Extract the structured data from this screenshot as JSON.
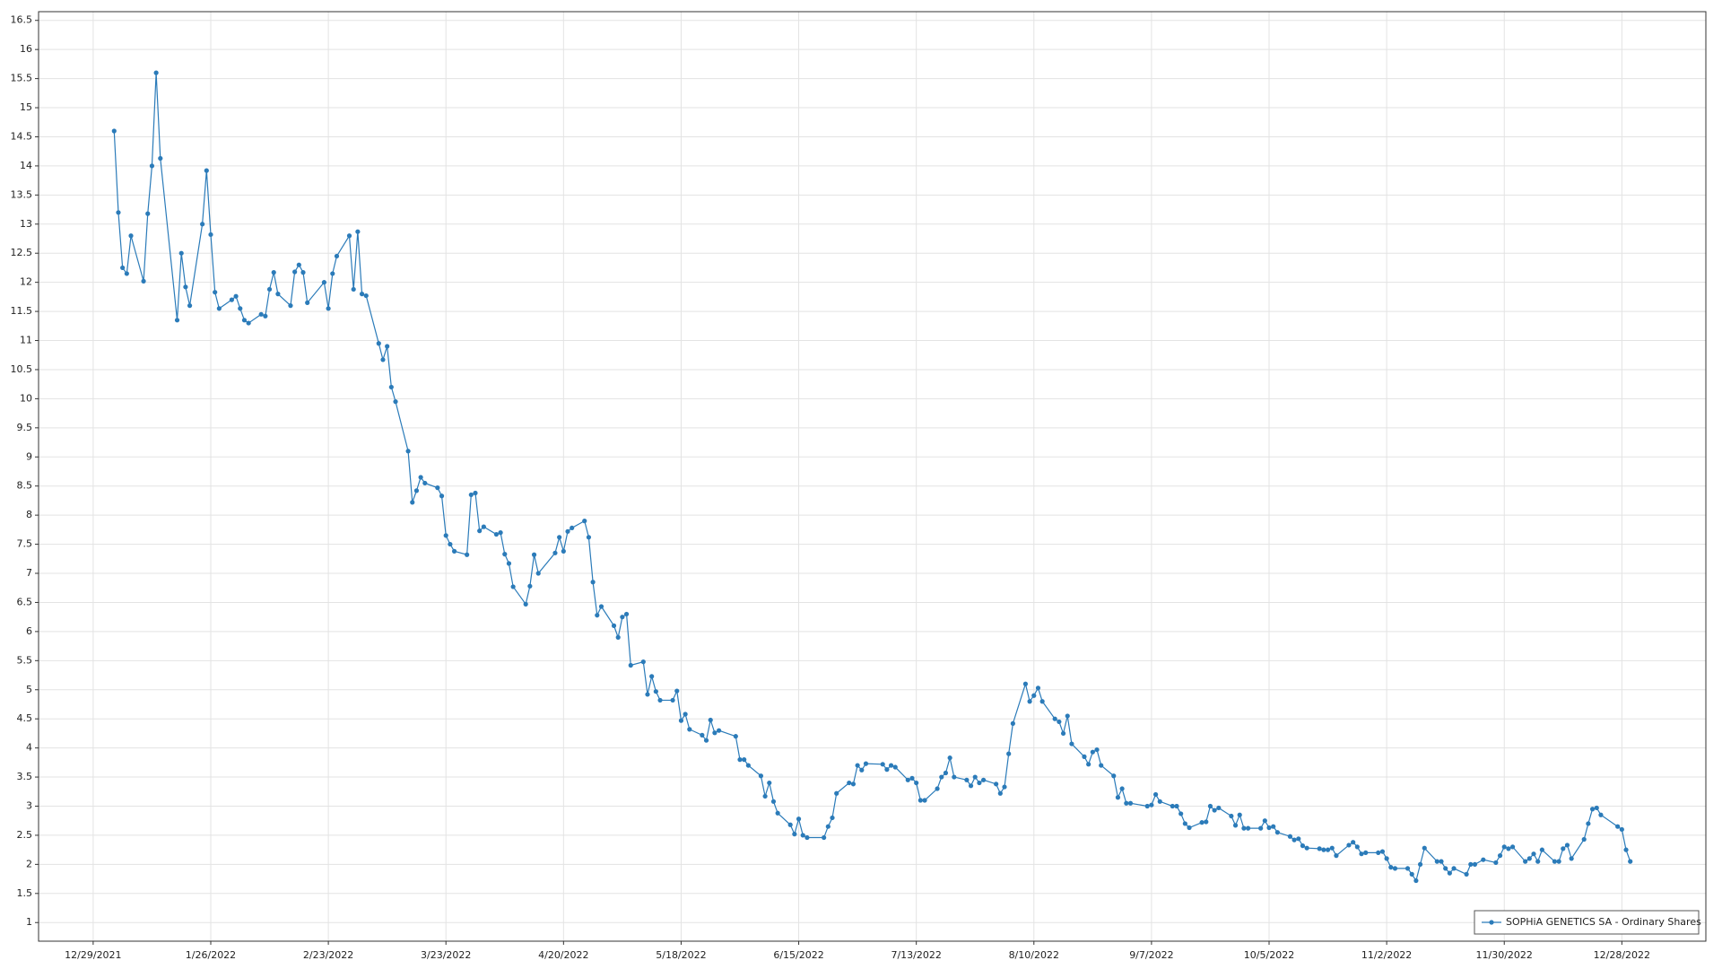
{
  "chart_data": {
    "type": "line",
    "x": [
      "2022-01-03",
      "2022-01-04",
      "2022-01-05",
      "2022-01-06",
      "2022-01-07",
      "2022-01-10",
      "2022-01-11",
      "2022-01-12",
      "2022-01-13",
      "2022-01-14",
      "2022-01-18",
      "2022-01-19",
      "2022-01-20",
      "2022-01-21",
      "2022-01-24",
      "2022-01-25",
      "2022-01-26",
      "2022-01-27",
      "2022-01-28",
      "2022-01-31",
      "2022-02-01",
      "2022-02-02",
      "2022-02-03",
      "2022-02-04",
      "2022-02-07",
      "2022-02-08",
      "2022-02-09",
      "2022-02-10",
      "2022-02-11",
      "2022-02-14",
      "2022-02-15",
      "2022-02-16",
      "2022-02-17",
      "2022-02-18",
      "2022-02-22",
      "2022-02-23",
      "2022-02-24",
      "2022-02-25",
      "2022-02-28",
      "2022-03-01",
      "2022-03-02",
      "2022-03-03",
      "2022-03-04",
      "2022-03-07",
      "2022-03-08",
      "2022-03-09",
      "2022-03-10",
      "2022-03-11",
      "2022-03-14",
      "2022-03-15",
      "2022-03-16",
      "2022-03-17",
      "2022-03-18",
      "2022-03-21",
      "2022-03-22",
      "2022-03-23",
      "2022-03-24",
      "2022-03-25",
      "2022-03-28",
      "2022-03-29",
      "2022-03-30",
      "2022-03-31",
      "2022-04-01",
      "2022-04-04",
      "2022-04-05",
      "2022-04-06",
      "2022-04-07",
      "2022-04-08",
      "2022-04-11",
      "2022-04-12",
      "2022-04-13",
      "2022-04-14",
      "2022-04-18",
      "2022-04-19",
      "2022-04-20",
      "2022-04-21",
      "2022-04-22",
      "2022-04-25",
      "2022-04-26",
      "2022-04-27",
      "2022-04-28",
      "2022-04-29",
      "2022-05-02",
      "2022-05-03",
      "2022-05-04",
      "2022-05-05",
      "2022-05-06",
      "2022-05-09",
      "2022-05-10",
      "2022-05-11",
      "2022-05-12",
      "2022-05-13",
      "2022-05-16",
      "2022-05-17",
      "2022-05-18",
      "2022-05-19",
      "2022-05-20",
      "2022-05-23",
      "2022-05-24",
      "2022-05-25",
      "2022-05-26",
      "2022-05-27",
      "2022-05-31",
      "2022-06-01",
      "2022-06-02",
      "2022-06-03",
      "2022-06-06",
      "2022-06-07",
      "2022-06-08",
      "2022-06-09",
      "2022-06-10",
      "2022-06-13",
      "2022-06-14",
      "2022-06-15",
      "2022-06-16",
      "2022-06-17",
      "2022-06-21",
      "2022-06-22",
      "2022-06-23",
      "2022-06-24",
      "2022-06-27",
      "2022-06-28",
      "2022-06-29",
      "2022-06-30",
      "2022-07-01",
      "2022-07-05",
      "2022-07-06",
      "2022-07-07",
      "2022-07-08",
      "2022-07-11",
      "2022-07-12",
      "2022-07-13",
      "2022-07-14",
      "2022-07-15",
      "2022-07-18",
      "2022-07-19",
      "2022-07-20",
      "2022-07-21",
      "2022-07-22",
      "2022-07-25",
      "2022-07-26",
      "2022-07-27",
      "2022-07-28",
      "2022-07-29",
      "2022-08-01",
      "2022-08-02",
      "2022-08-03",
      "2022-08-04",
      "2022-08-05",
      "2022-08-08",
      "2022-08-09",
      "2022-08-10",
      "2022-08-11",
      "2022-08-12",
      "2022-08-15",
      "2022-08-16",
      "2022-08-17",
      "2022-08-18",
      "2022-08-19",
      "2022-08-22",
      "2022-08-23",
      "2022-08-24",
      "2022-08-25",
      "2022-08-26",
      "2022-08-29",
      "2022-08-30",
      "2022-08-31",
      "2022-09-01",
      "2022-09-02",
      "2022-09-06",
      "2022-09-07",
      "2022-09-08",
      "2022-09-09",
      "2022-09-12",
      "2022-09-13",
      "2022-09-14",
      "2022-09-15",
      "2022-09-16",
      "2022-09-19",
      "2022-09-20",
      "2022-09-21",
      "2022-09-22",
      "2022-09-23",
      "2022-09-26",
      "2022-09-27",
      "2022-09-28",
      "2022-09-29",
      "2022-09-30",
      "2022-10-03",
      "2022-10-04",
      "2022-10-05",
      "2022-10-06",
      "2022-10-07",
      "2022-10-10",
      "2022-10-11",
      "2022-10-12",
      "2022-10-13",
      "2022-10-14",
      "2022-10-17",
      "2022-10-18",
      "2022-10-19",
      "2022-10-20",
      "2022-10-21",
      "2022-10-24",
      "2022-10-25",
      "2022-10-26",
      "2022-10-27",
      "2022-10-28",
      "2022-10-31",
      "2022-11-01",
      "2022-11-02",
      "2022-11-03",
      "2022-11-04",
      "2022-11-07",
      "2022-11-08",
      "2022-11-09",
      "2022-11-10",
      "2022-11-11",
      "2022-11-14",
      "2022-11-15",
      "2022-11-16",
      "2022-11-17",
      "2022-11-18",
      "2022-11-21",
      "2022-11-22",
      "2022-11-23",
      "2022-11-25",
      "2022-11-28",
      "2022-11-29",
      "2022-11-30",
      "2022-12-01",
      "2022-12-02",
      "2022-12-05",
      "2022-12-06",
      "2022-12-07",
      "2022-12-08",
      "2022-12-09",
      "2022-12-12",
      "2022-12-13",
      "2022-12-14",
      "2022-12-15",
      "2022-12-16",
      "2022-12-19",
      "2022-12-20",
      "2022-12-21",
      "2022-12-22",
      "2022-12-23",
      "2022-12-27",
      "2022-12-28",
      "2022-12-29",
      "2022-12-30"
    ],
    "series": [
      {
        "name": "SOPHiA GENETICS SA - Ordinary Shares",
        "color": "#2b7bb9",
        "values": [
          14.6,
          13.2,
          12.25,
          12.15,
          12.8,
          12.02,
          13.18,
          14.0,
          15.6,
          14.13,
          11.35,
          12.5,
          11.92,
          11.6,
          13.0,
          13.92,
          12.82,
          11.83,
          11.55,
          11.7,
          11.76,
          11.55,
          11.35,
          11.3,
          11.45,
          11.42,
          11.88,
          12.17,
          11.8,
          11.6,
          12.18,
          12.3,
          12.17,
          11.65,
          12.0,
          11.55,
          12.15,
          12.45,
          12.8,
          11.88,
          12.87,
          11.8,
          11.77,
          10.95,
          10.67,
          10.9,
          10.2,
          9.95,
          9.1,
          8.22,
          8.42,
          8.65,
          8.55,
          8.47,
          8.33,
          7.65,
          7.5,
          7.38,
          7.32,
          8.35,
          8.38,
          7.73,
          7.8,
          7.67,
          7.7,
          7.33,
          7.17,
          6.77,
          6.47,
          6.78,
          7.32,
          7.0,
          7.35,
          7.62,
          7.38,
          7.72,
          7.78,
          7.9,
          7.62,
          6.85,
          6.28,
          6.43,
          6.1,
          5.9,
          6.25,
          6.3,
          5.42,
          5.48,
          4.92,
          5.23,
          4.97,
          4.82,
          4.82,
          4.98,
          4.47,
          4.58,
          4.32,
          4.22,
          4.13,
          4.48,
          4.26,
          4.3,
          4.2,
          3.8,
          3.8,
          3.7,
          3.52,
          3.17,
          3.4,
          3.08,
          2.88,
          2.68,
          2.52,
          2.78,
          2.5,
          2.46,
          2.46,
          2.65,
          2.8,
          3.22,
          3.4,
          3.38,
          3.7,
          3.62,
          3.73,
          3.72,
          3.63,
          3.7,
          3.67,
          3.45,
          3.48,
          3.4,
          3.1,
          3.1,
          3.3,
          3.5,
          3.57,
          3.83,
          3.5,
          3.45,
          3.35,
          3.5,
          3.4,
          3.45,
          3.38,
          3.22,
          3.33,
          3.9,
          4.42,
          5.1,
          4.8,
          4.9,
          5.03,
          4.8,
          4.5,
          4.45,
          4.25,
          4.55,
          4.07,
          3.85,
          3.72,
          3.93,
          3.97,
          3.7,
          3.52,
          3.15,
          3.3,
          3.05,
          3.05,
          3.0,
          3.02,
          3.2,
          3.08,
          3.0,
          3.0,
          2.87,
          2.7,
          2.63,
          2.72,
          2.73,
          3.0,
          2.93,
          2.97,
          2.83,
          2.67,
          2.85,
          2.62,
          2.62,
          2.62,
          2.75,
          2.63,
          2.65,
          2.55,
          2.48,
          2.42,
          2.44,
          2.32,
          2.28,
          2.27,
          2.25,
          2.25,
          2.28,
          2.15,
          2.33,
          2.38,
          2.3,
          2.18,
          2.2,
          2.2,
          2.22,
          2.1,
          1.95,
          1.93,
          1.93,
          1.83,
          1.72,
          2.0,
          2.28,
          2.05,
          2.05,
          1.93,
          1.85,
          1.93,
          1.83,
          2.0,
          2.0,
          2.08,
          2.03,
          2.15,
          2.3,
          2.27,
          2.3,
          2.05,
          2.1,
          2.18,
          2.05,
          2.25,
          2.05,
          2.05,
          2.27,
          2.33,
          2.1,
          2.43,
          2.7,
          2.95,
          2.97,
          2.85,
          2.65,
          2.6,
          2.25,
          2.05
        ]
      }
    ],
    "xlim": [
      "2021-12-16",
      "2023-01-17"
    ],
    "xticks": [
      {
        "value": "2021-12-29",
        "label": "12/29/2021"
      },
      {
        "value": "2022-01-26",
        "label": "1/26/2022"
      },
      {
        "value": "2022-02-23",
        "label": "2/23/2022"
      },
      {
        "value": "2022-03-23",
        "label": "3/23/2022"
      },
      {
        "value": "2022-04-20",
        "label": "4/20/2022"
      },
      {
        "value": "2022-05-18",
        "label": "5/18/2022"
      },
      {
        "value": "2022-06-15",
        "label": "6/15/2022"
      },
      {
        "value": "2022-07-13",
        "label": "7/13/2022"
      },
      {
        "value": "2022-08-10",
        "label": "8/10/2022"
      },
      {
        "value": "2022-09-07",
        "label": "9/7/2022"
      },
      {
        "value": "2022-10-05",
        "label": "10/5/2022"
      },
      {
        "value": "2022-11-02",
        "label": "11/2/2022"
      },
      {
        "value": "2022-11-30",
        "label": "11/30/2022"
      },
      {
        "value": "2022-12-28",
        "label": "12/28/2022"
      }
    ],
    "ylim": [
      0.68,
      16.65
    ],
    "yticks": [
      1,
      1.5,
      2,
      2.5,
      3,
      3.5,
      4,
      4.5,
      5,
      5.5,
      6,
      6.5,
      7,
      7.5,
      8,
      8.5,
      9,
      9.5,
      10,
      10.5,
      11,
      11.5,
      12,
      12.5,
      13,
      13.5,
      14,
      14.5,
      15,
      15.5,
      16,
      16.5
    ],
    "grid": true,
    "legend": "lower right"
  }
}
